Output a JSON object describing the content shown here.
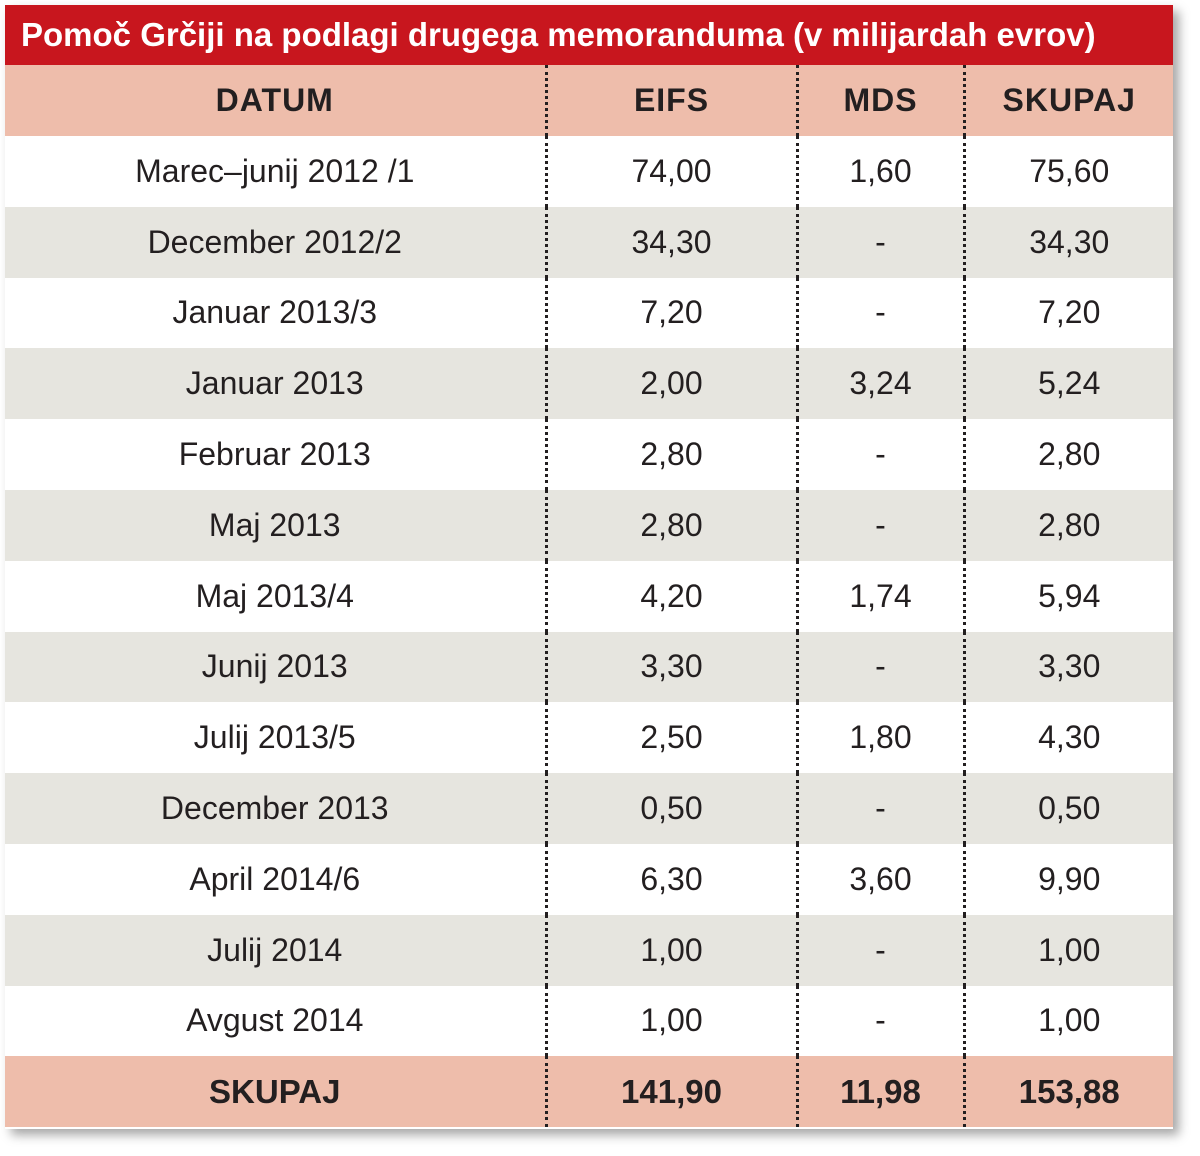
{
  "title": "Pomoč Grčiji na podlagi drugega memoranduma (v milijardah evrov)",
  "chart_data": {
    "type": "table",
    "title": "Pomoč Grčiji na podlagi drugega memoranduma (v milijardah evrov)",
    "columns": [
      "DATUM",
      "EIFS",
      "MDS",
      "SKUPAJ"
    ],
    "rows": [
      [
        "Marec–junij 2012 /1",
        "74,00",
        "1,60",
        "75,60"
      ],
      [
        "December 2012/2",
        "34,30",
        "-",
        "34,30"
      ],
      [
        "Januar 2013/3",
        "7,20",
        "-",
        "7,20"
      ],
      [
        "Januar 2013",
        "2,00",
        "3,24",
        "5,24"
      ],
      [
        "Februar 2013",
        "2,80",
        "-",
        "2,80"
      ],
      [
        "Maj 2013",
        "2,80",
        "-",
        "2,80"
      ],
      [
        "Maj 2013/4",
        "4,20",
        "1,74",
        "5,94"
      ],
      [
        "Junij 2013",
        "3,30",
        "-",
        "3,30"
      ],
      [
        "Julij 2013/5",
        "2,50",
        "1,80",
        "4,30"
      ],
      [
        "December 2013",
        "0,50",
        "-",
        "0,50"
      ],
      [
        "April 2014/6",
        "6,30",
        "3,60",
        "9,90"
      ],
      [
        "Julij 2014",
        "1,00",
        "-",
        "1,00"
      ],
      [
        "Avgust 2014",
        "1,00",
        "-",
        "1,00"
      ]
    ],
    "total": [
      "SKUPAJ",
      "141,90",
      "11,98",
      "153,88"
    ]
  },
  "colors": {
    "title_bg": "#c8161e",
    "header_bg": "#eebdab",
    "stripe_bg": "#e6e5df"
  }
}
